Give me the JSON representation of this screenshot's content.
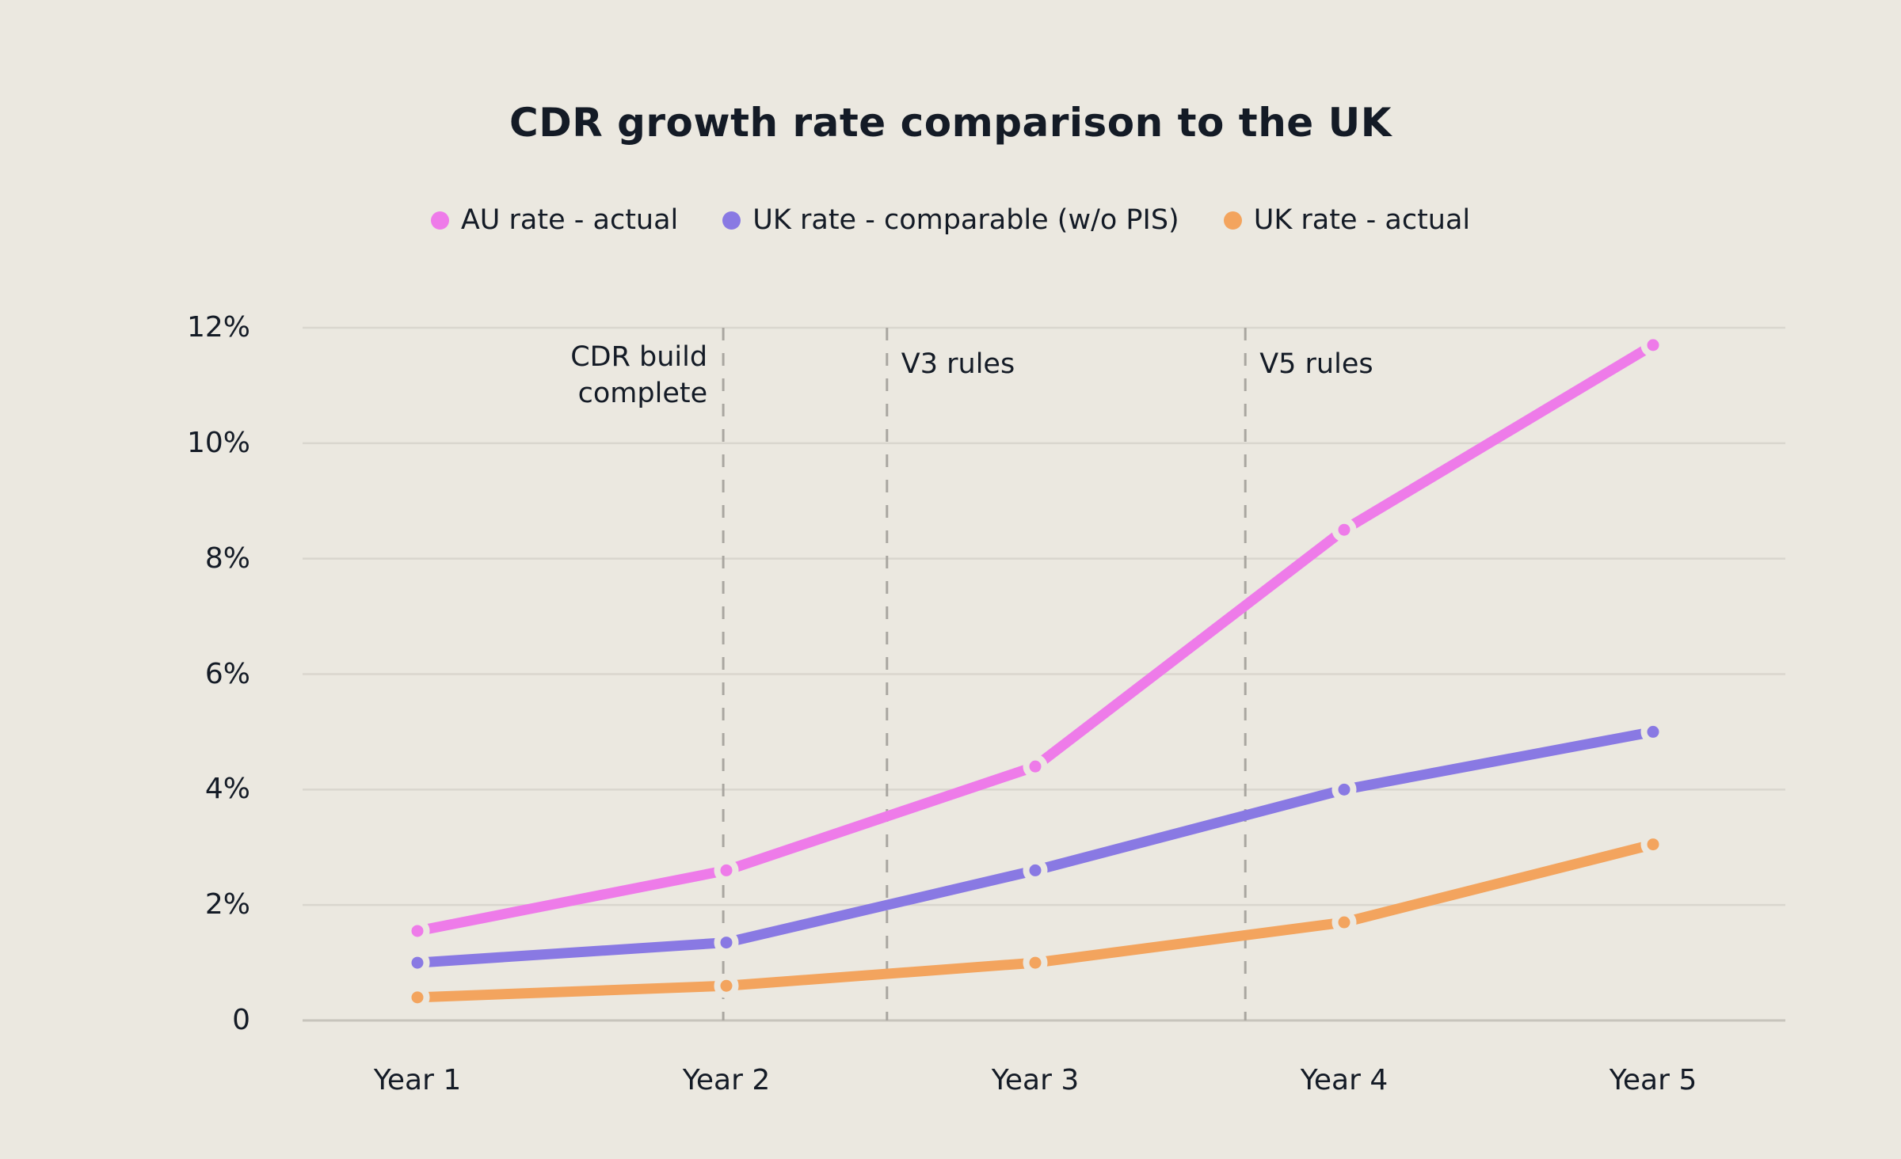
{
  "title": "CDR growth rate comparison to the UK",
  "colors": {
    "background": "#EBE8E0",
    "text": "#141B26",
    "gridline": "#D9D6CE",
    "zero_line": "#C7C4BC",
    "dashed_line": "#A9A6A0",
    "au_actual": "#EE7BE9",
    "uk_comparable": "#8979E3",
    "uk_actual": "#F3A45E"
  },
  "chart_data": {
    "type": "line",
    "title": "CDR growth rate comparison to the UK",
    "categories": [
      "Year 1",
      "Year 2",
      "Year 3",
      "Year 4",
      "Year 5"
    ],
    "xlabel": "",
    "ylabel": "",
    "ylim": [
      0,
      12
    ],
    "grid": true,
    "legend_position": "top",
    "yticks": [
      {
        "label": "12%",
        "value": 12
      },
      {
        "label": "10%",
        "value": 10
      },
      {
        "label": "8%",
        "value": 8
      },
      {
        "label": "6%",
        "value": 6
      },
      {
        "label": "4%",
        "value": 4
      },
      {
        "label": "2%",
        "value": 2
      },
      {
        "label": "0",
        "value": 0
      }
    ],
    "series": [
      {
        "name": "AU rate - actual",
        "color": "#EE7BE9",
        "values": [
          1.55,
          2.6,
          4.4,
          8.5,
          11.7
        ]
      },
      {
        "name": "UK rate - comparable (w/o PIS)",
        "color": "#8979E3",
        "values": [
          1.0,
          1.35,
          2.6,
          4.0,
          5.0
        ]
      },
      {
        "name": "UK rate - actual",
        "color": "#F3A45E",
        "values": [
          0.4,
          0.6,
          1.0,
          1.7,
          3.05
        ]
      }
    ],
    "annotations": [
      {
        "label": "CDR build complete",
        "x_index": 0.99,
        "align": "right"
      },
      {
        "label": "V3 rules",
        "x_index": 1.52,
        "align": "left"
      },
      {
        "label": "V5 rules",
        "x_index": 2.68,
        "align": "left"
      }
    ]
  }
}
